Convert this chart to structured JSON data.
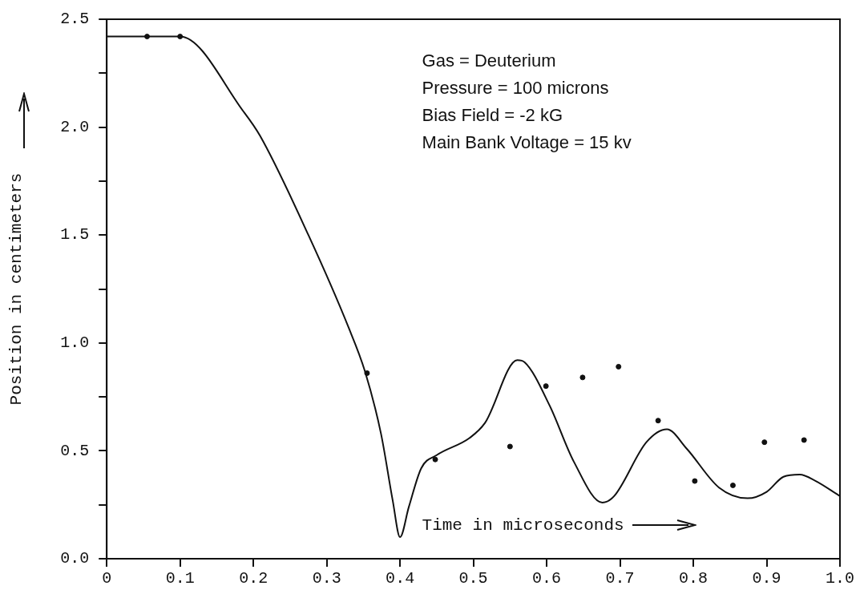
{
  "chart_data": {
    "type": "line",
    "xlabel": "Time in microseconds",
    "ylabel": "Position in centimeters",
    "xlim": [
      0,
      1.0
    ],
    "ylim": [
      0,
      2.5
    ],
    "xticks": [
      0,
      0.1,
      0.2,
      0.3,
      0.4,
      0.5,
      0.6,
      0.7,
      0.8,
      0.9,
      {
        "value": 1.0,
        "label": "1.0"
      }
    ],
    "yticks": [
      {
        "value": 0,
        "label": "0.0"
      },
      {
        "value": 0.25,
        "label": null
      },
      {
        "value": 0.5,
        "label": "0.5"
      },
      {
        "value": 0.75,
        "label": null
      },
      {
        "value": 1.0,
        "label": "1.0"
      },
      {
        "value": 1.25,
        "label": null
      },
      {
        "value": 1.5,
        "label": "1.5"
      },
      {
        "value": 1.75,
        "label": null
      },
      {
        "value": 2.0,
        "label": "2.0"
      },
      {
        "value": 2.25,
        "label": null
      },
      {
        "value": 2.5,
        "label": "2.5"
      }
    ],
    "grid": false,
    "legend": false,
    "line_style": "solid",
    "annotations": [
      "Gas = Deuterium",
      "Pressure = 100 microns",
      "Bias Field = -2 kG",
      "Main Bank Voltage = 15 kv"
    ],
    "series": [
      {
        "marker": "none",
        "color": "#111111",
        "x": [
          0,
          0.1,
          0.187,
          0.209,
          0.275,
          0.33,
          0.352,
          0.374,
          0.39,
          0.4,
          0.412,
          0.429,
          0.45,
          0.495,
          0.516,
          0.56,
          0.57,
          0.604,
          0.637,
          0.676,
          0.692,
          0.736,
          0.764,
          0.791,
          0.835,
          0.874,
          0.9,
          0.923,
          0.945,
          0.967,
          1.0
        ],
        "values": [
          2.42,
          2.42,
          2.07,
          1.96,
          1.5,
          1.07,
          0.87,
          0.58,
          0.27,
          0.1,
          0.24,
          0.42,
          0.48,
          0.56,
          0.63,
          0.92,
          0.91,
          0.71,
          0.45,
          0.26,
          0.29,
          0.54,
          0.6,
          0.51,
          0.33,
          0.28,
          0.31,
          0.38,
          0.39,
          0.36,
          0.29
        ]
      },
      {
        "type": "scatter",
        "marker": "circle",
        "color": "#111111",
        "x": [
          0.055,
          0.1,
          0.355,
          0.448,
          0.55,
          0.599,
          0.649,
          0.698,
          0.752,
          0.802,
          0.854,
          0.897,
          0.951
        ],
        "values": [
          2.42,
          2.42,
          0.86,
          0.46,
          0.52,
          0.8,
          0.84,
          0.89,
          0.64,
          0.36,
          0.34,
          0.54,
          0.55
        ]
      }
    ]
  }
}
